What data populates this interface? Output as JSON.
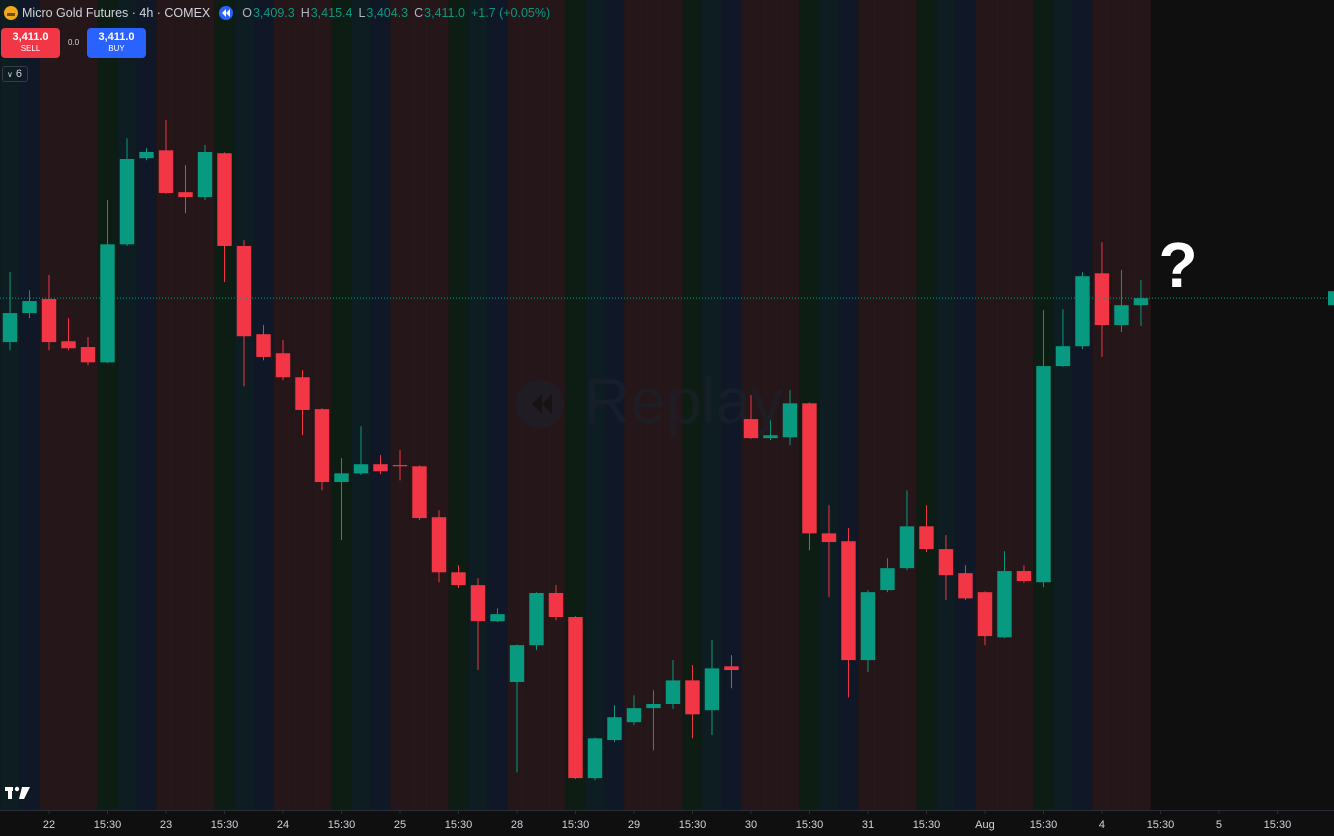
{
  "header": {
    "symbol": "Micro Gold Futures · 4h · COMEX",
    "ohlc": [
      {
        "label": "O",
        "value": "3,409.3"
      },
      {
        "label": "H",
        "value": "3,415.4"
      },
      {
        "label": "L",
        "value": "3,404.3"
      },
      {
        "label": "C",
        "value": "3,411.0"
      }
    ],
    "change": "+1.7 (+0.05%)"
  },
  "trade": {
    "sell_price": "3,411.0",
    "sell": "SELL",
    "spread": "0.0",
    "buy_price": "3,411.0",
    "buy": "BUY"
  },
  "indicators_count": 6,
  "chart_data": {
    "type": "candlestick",
    "annotation": "?",
    "watermark": "Replay",
    "up_color": "#089981",
    "down_color": "#f23645",
    "x": [
      0,
      1,
      2,
      3,
      4,
      5,
      6,
      7,
      8,
      9,
      10,
      11,
      12,
      13,
      14,
      15,
      16,
      17,
      18,
      19,
      20,
      21,
      22,
      23,
      24,
      25,
      26,
      27,
      28,
      29,
      30,
      31,
      32,
      33,
      34,
      35,
      36,
      37,
      38,
      39,
      40,
      41,
      42,
      43,
      44,
      45,
      46,
      47,
      48,
      49,
      50,
      51,
      52,
      53,
      54,
      55,
      56,
      57,
      58
    ],
    "open": [
      3400.4,
      3407.4,
      3410.8,
      3400.6,
      3399.2,
      3395.5,
      3424.0,
      3444.8,
      3446.7,
      3436.6,
      3435.4,
      3446.0,
      3423.6,
      3402.3,
      3397.7,
      3391.9,
      3384.2,
      3366.6,
      3368.7,
      3370.9,
      3370.7,
      3370.4,
      3358.1,
      3344.8,
      3341.7,
      3333.0,
      3318.3,
      3327.2,
      3339.8,
      3334.0,
      3295.1,
      3304.3,
      3308.6,
      3312.0,
      3313.0,
      3318.7,
      3311.5,
      3322.1,
      3381.8,
      3377.2,
      3377.4,
      3385.6,
      3354.2,
      3352.3,
      3323.6,
      3340.5,
      3345.8,
      3355.9,
      3350.4,
      3344.6,
      3340.0,
      3329.1,
      3345.1,
      3342.4,
      3394.6,
      3399.4,
      3417.0,
      3404.5,
      3409.3
    ],
    "high": [
      3417.3,
      3412.9,
      3416.6,
      3406.2,
      3401.6,
      3434.7,
      3449.6,
      3447.2,
      3454.0,
      3443.1,
      3448.0,
      3446.2,
      3425.0,
      3404.5,
      3400.9,
      3393.6,
      3384.4,
      3372.4,
      3380.1,
      3373.1,
      3374.3,
      3370.6,
      3359.8,
      3346.5,
      3343.4,
      3336.1,
      3327.4,
      3340.0,
      3341.7,
      3334.2,
      3304.9,
      3312.7,
      3315.1,
      3316.3,
      3323.6,
      3322.4,
      3328.4,
      3324.8,
      3387.6,
      3381.5,
      3388.8,
      3385.8,
      3361.0,
      3355.5,
      3340.5,
      3348.2,
      3364.6,
      3361.0,
      3353.8,
      3346.5,
      3340.2,
      3349.9,
      3346.5,
      3408.1,
      3408.3,
      3417.3,
      3424.5,
      3417.8,
      3415.4
    ],
    "low": [
      3398.4,
      3406.2,
      3398.4,
      3398.4,
      3394.8,
      3395.3,
      3423.6,
      3444.3,
      3436.2,
      3431.5,
      3434.7,
      3414.9,
      3389.7,
      3396.0,
      3391.2,
      3377.9,
      3364.6,
      3352.6,
      3368.3,
      3368.5,
      3367.0,
      3357.4,
      3342.4,
      3341.0,
      3321.2,
      3332.8,
      3296.5,
      3326.0,
      3333.2,
      3294.9,
      3294.6,
      3303.8,
      3307.9,
      3301.8,
      3311.8,
      3304.7,
      3305.5,
      3316.8,
      3377.0,
      3376.7,
      3375.5,
      3350.1,
      3338.8,
      3314.6,
      3320.7,
      3340.0,
      3345.3,
      3349.7,
      3338.1,
      3338.1,
      3327.2,
      3328.9,
      3342.2,
      3341.2,
      3394.4,
      3398.7,
      3396.8,
      3402.8,
      3404.3
    ],
    "close": [
      3407.4,
      3410.3,
      3400.4,
      3398.9,
      3395.5,
      3424.0,
      3444.6,
      3446.3,
      3436.4,
      3435.4,
      3446.3,
      3423.6,
      3401.8,
      3396.8,
      3391.9,
      3384.0,
      3366.6,
      3368.7,
      3370.9,
      3369.2,
      3370.4,
      3357.9,
      3344.8,
      3341.7,
      3333.0,
      3334.7,
      3327.2,
      3339.8,
      3334.0,
      3295.1,
      3304.7,
      3309.8,
      3312.0,
      3313.0,
      3318.7,
      3310.5,
      3321.6,
      3321.2,
      3377.2,
      3377.9,
      3385.6,
      3354.2,
      3352.1,
      3323.6,
      3340.0,
      3345.8,
      3355.9,
      3350.4,
      3344.1,
      3338.5,
      3329.4,
      3345.1,
      3342.7,
      3394.6,
      3399.4,
      3416.3,
      3404.5,
      3409.3,
      3411.0
    ],
    "xlim": [
      -0.513,
      67.9
    ],
    "ylim": [
      3287.4,
      3483.0
    ],
    "xticks": [
      {
        "value": 2,
        "label": "22"
      },
      {
        "value": 5,
        "label": "15:30"
      },
      {
        "value": 8,
        "label": "23"
      },
      {
        "value": 11,
        "label": "15:30"
      },
      {
        "value": 14,
        "label": "24"
      },
      {
        "value": 17,
        "label": "15:30"
      },
      {
        "value": 20,
        "label": "25"
      },
      {
        "value": 23,
        "label": "15:30"
      },
      {
        "value": 26,
        "label": "28"
      },
      {
        "value": 29,
        "label": "15:30"
      },
      {
        "value": 32,
        "label": "29"
      },
      {
        "value": 35,
        "label": "15:30"
      },
      {
        "value": 38,
        "label": "30"
      },
      {
        "value": 41,
        "label": "15:30"
      },
      {
        "value": 44,
        "label": "31"
      },
      {
        "value": 47,
        "label": "15:30"
      },
      {
        "value": 50,
        "label": "Aug"
      },
      {
        "value": 53,
        "label": "15:30"
      },
      {
        "value": 56,
        "label": "4"
      },
      {
        "value": 59,
        "label": "15:30"
      },
      {
        "value": 62,
        "label": "5"
      },
      {
        "value": 65,
        "label": "15:30"
      }
    ]
  }
}
